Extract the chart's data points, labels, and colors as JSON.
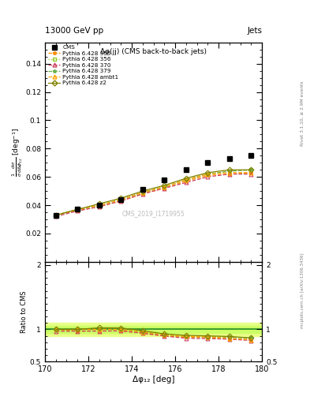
{
  "title_top": "13000 GeV pp",
  "title_right": "Jets",
  "plot_title": "Δφ(jj) (CMS back-to-back jets)",
  "xlabel": "Δφ₁₂ [deg]",
  "ylabel_main": "$\\frac{1}{\\bar{\\sigma}}\\frac{d\\sigma}{d\\Delta\\phi_{12}}$ [deg$^{-1}$]",
  "ylabel_ratio": "Ratio to CMS",
  "watermark": "CMS_2019_I1719955",
  "right_label_top": "Rivet 3.1.10, ≥ 2.9M events",
  "right_label_bot": "mcplots.cern.ch [arXiv:1306.3436]",
  "xlim": [
    170,
    180
  ],
  "ylim_main": [
    0,
    0.155
  ],
  "ylim_ratio": [
    0.5,
    2.05
  ],
  "yticks_main": [
    0.02,
    0.04,
    0.06,
    0.08,
    0.1,
    0.12,
    0.14
  ],
  "ytick_labels_main": [
    "0.02",
    "0.04",
    "0.06",
    "0.08",
    "0.1",
    "0.12",
    "0.14"
  ],
  "yticks_ratio": [
    0.5,
    1.0,
    2.0
  ],
  "ytick_labels_ratio": [
    "0.5",
    "1",
    "2"
  ],
  "cms_x": [
    170.5,
    171.5,
    172.5,
    173.5,
    174.5,
    175.5,
    176.5,
    177.5,
    178.5,
    179.5
  ],
  "cms_y": [
    0.033,
    0.037,
    0.04,
    0.044,
    0.051,
    0.058,
    0.065,
    0.07,
    0.073,
    0.075
  ],
  "pythia_x": [
    170.5,
    171.5,
    172.5,
    173.5,
    174.5,
    175.5,
    176.5,
    177.5,
    178.5,
    179.5
  ],
  "p355_y": [
    0.033,
    0.036,
    0.039,
    0.043,
    0.048,
    0.052,
    0.057,
    0.061,
    0.062,
    0.063
  ],
  "p356_y": [
    0.033,
    0.037,
    0.04,
    0.044,
    0.049,
    0.053,
    0.058,
    0.062,
    0.064,
    0.065
  ],
  "p370_y": [
    0.032,
    0.036,
    0.039,
    0.043,
    0.048,
    0.052,
    0.056,
    0.06,
    0.062,
    0.062
  ],
  "p379_y": [
    0.033,
    0.037,
    0.04,
    0.044,
    0.049,
    0.053,
    0.058,
    0.062,
    0.064,
    0.065
  ],
  "pambt1_y": [
    0.033,
    0.037,
    0.04,
    0.044,
    0.049,
    0.053,
    0.058,
    0.062,
    0.063,
    0.063
  ],
  "pz2_y": [
    0.033,
    0.037,
    0.041,
    0.045,
    0.05,
    0.054,
    0.059,
    0.063,
    0.065,
    0.065
  ],
  "ratio_p355": [
    1.0,
    0.974,
    0.975,
    0.977,
    0.941,
    0.897,
    0.877,
    0.871,
    0.849,
    0.84
  ],
  "ratio_p356": [
    1.0,
    1.0,
    1.0,
    1.0,
    0.961,
    0.914,
    0.892,
    0.886,
    0.877,
    0.867
  ],
  "ratio_p370": [
    0.97,
    0.973,
    0.975,
    0.977,
    0.941,
    0.897,
    0.862,
    0.857,
    0.849,
    0.827
  ],
  "ratio_p379": [
    1.0,
    1.0,
    1.0,
    1.0,
    0.961,
    0.914,
    0.892,
    0.886,
    0.877,
    0.867
  ],
  "ratio_pambt1": [
    1.0,
    1.0,
    1.0,
    1.0,
    0.961,
    0.914,
    0.892,
    0.886,
    0.863,
    0.84
  ],
  "ratio_pz2": [
    1.0,
    1.0,
    1.025,
    1.023,
    0.98,
    0.931,
    0.908,
    0.9,
    0.89,
    0.867
  ],
  "color_355": "#ff8c00",
  "color_356": "#9acd32",
  "color_370": "#cc4466",
  "color_379": "#6ab04c",
  "color_ambt1": "#ffa500",
  "color_z2": "#808000",
  "cms_color": "#000000",
  "band_color_outer": "#e8ff88",
  "band_color_inner": "#ccff66",
  "band_line_color": "#228B22"
}
